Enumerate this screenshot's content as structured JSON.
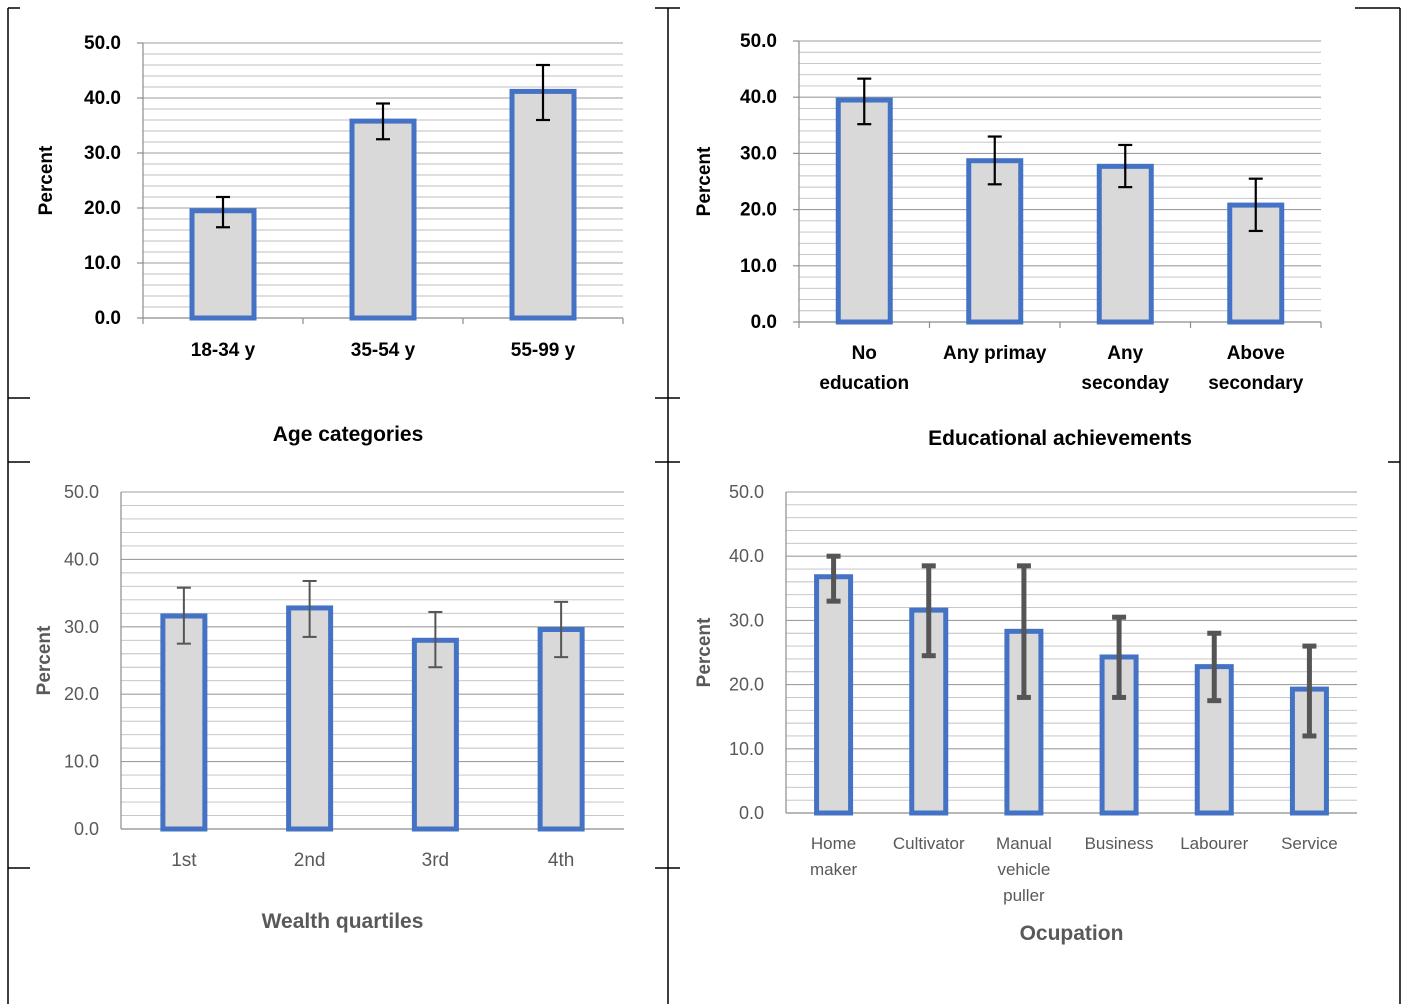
{
  "colors": {
    "bar_fill": "#d9d9d9",
    "bar_border": "#4472c4",
    "gridline": "#bfbfbf",
    "axis": "#8c8c8c",
    "errorbar_dark": "#000000",
    "errorbar_gray": "#555555",
    "text_dark": "#000000",
    "text_gray": "#595959",
    "frame": "#000000"
  },
  "chart_data": [
    {
      "type": "bar",
      "categories": [
        "18-34 y",
        "35-54 y",
        "55-99 y"
      ],
      "values": [
        19.5,
        35.8,
        41.2
      ],
      "error_low": [
        16.5,
        32.5,
        36.0
      ],
      "error_high": [
        22.0,
        39.0,
        46.0
      ],
      "title": "",
      "xlabel": "Age categories",
      "ylabel": "Percent",
      "ylim": [
        0,
        50
      ],
      "yticks": [
        "0.0",
        "10.0",
        "20.0",
        "30.0",
        "40.0",
        "50.0"
      ],
      "grid": true
    },
    {
      "type": "bar",
      "categories": [
        "No education",
        "Any primay",
        "Any seconday",
        "Above secondary"
      ],
      "values": [
        39.5,
        28.7,
        27.7,
        20.8
      ],
      "error_low": [
        35.2,
        24.5,
        24.0,
        16.2
      ],
      "error_high": [
        43.3,
        33.0,
        31.5,
        25.5
      ],
      "title": "",
      "xlabel": "Educational achievements",
      "ylabel": "Percent",
      "ylim": [
        0,
        50
      ],
      "yticks": [
        "0.0",
        "10.0",
        "20.0",
        "30.0",
        "40.0",
        "50.0"
      ],
      "grid": true
    },
    {
      "type": "bar",
      "categories": [
        "1st",
        "2nd",
        "3rd",
        "4th"
      ],
      "values": [
        31.6,
        32.8,
        28.0,
        29.6
      ],
      "error_low": [
        27.5,
        28.5,
        24.0,
        25.5
      ],
      "error_high": [
        35.8,
        36.8,
        32.2,
        33.7
      ],
      "title": "",
      "xlabel": "Wealth quartiles",
      "ylabel": "Percent",
      "ylim": [
        0,
        50
      ],
      "yticks": [
        "0.0",
        "10.0",
        "20.0",
        "30.0",
        "40.0",
        "50.0"
      ],
      "grid": true
    },
    {
      "type": "bar",
      "categories": [
        "Home maker",
        "Cultivator",
        "Manual vehicle puller",
        "Business",
        "Labourer",
        "Service"
      ],
      "values": [
        36.8,
        31.6,
        28.3,
        24.3,
        22.8,
        19.3
      ],
      "error_low": [
        33.0,
        24.5,
        18.0,
        18.0,
        17.5,
        12.0
      ],
      "error_high": [
        40.0,
        38.5,
        38.5,
        30.5,
        28.0,
        26.0
      ],
      "title": "",
      "xlabel": "Ocupation",
      "ylabel": "Percent",
      "ylim": [
        0,
        50
      ],
      "yticks": [
        "0.0",
        "10.0",
        "20.0",
        "30.0",
        "40.0",
        "50.0"
      ],
      "grid": true
    }
  ]
}
